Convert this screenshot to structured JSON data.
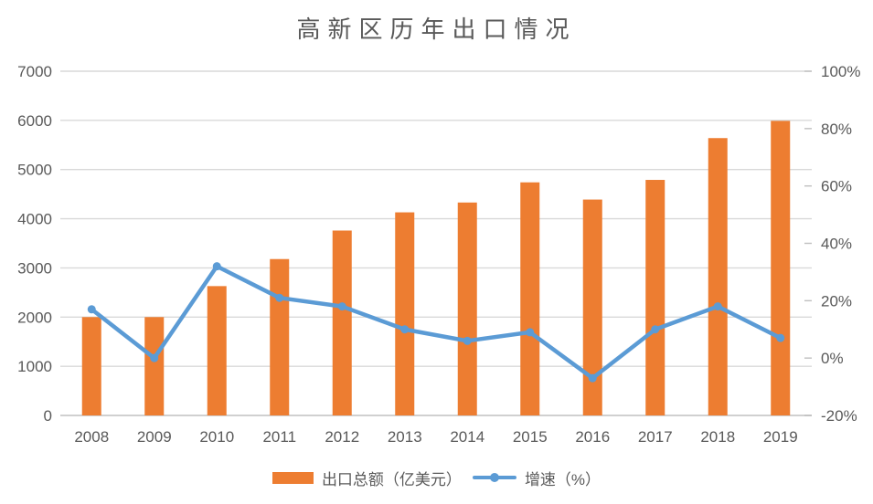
{
  "title": "高新区历年出口情况",
  "colors": {
    "bar": "#ED7D31",
    "line": "#5B9BD5",
    "grid": "#D9D9D9",
    "axis_line": "#D0D0D0",
    "tick": "#BFBFBF",
    "axis_text": "#595959",
    "title_text": "#595959",
    "background": "#FFFFFF"
  },
  "legend": {
    "items": [
      {
        "label": "出口总额（亿美元）",
        "marker": "bar"
      },
      {
        "label": "增速（%）",
        "marker": "line"
      }
    ],
    "position": "bottom"
  },
  "chart_data": {
    "type": "combo (bar + line)",
    "title": "高新区历年出口情况",
    "categories": [
      "2008",
      "2009",
      "2010",
      "2011",
      "2012",
      "2013",
      "2014",
      "2015",
      "2016",
      "2017",
      "2018",
      "2019"
    ],
    "series": [
      {
        "name": "出口总额（亿美元）",
        "type": "bar",
        "axis": "left",
        "color": "#ED7D31",
        "values": [
          2000,
          2000,
          2630,
          3180,
          3760,
          4130,
          4330,
          4740,
          4390,
          4790,
          5640,
          5990
        ]
      },
      {
        "name": "增速（%）",
        "type": "line",
        "axis": "right",
        "color": "#5B9BD5",
        "values": [
          17,
          0,
          32,
          21,
          18,
          10,
          6,
          9,
          -7,
          10,
          18,
          7
        ]
      }
    ],
    "left_axis": {
      "min": 0,
      "max": 7000,
      "step": 1000,
      "tick_labels": [
        "0",
        "1000",
        "2000",
        "3000",
        "4000",
        "5000",
        "6000",
        "7000"
      ]
    },
    "right_axis": {
      "min": -20,
      "max": 100,
      "step": 20,
      "tick_labels": [
        "-20%",
        "0%",
        "20%",
        "40%",
        "60%",
        "80%",
        "100%"
      ]
    },
    "grid": true,
    "legend_position": "bottom"
  }
}
